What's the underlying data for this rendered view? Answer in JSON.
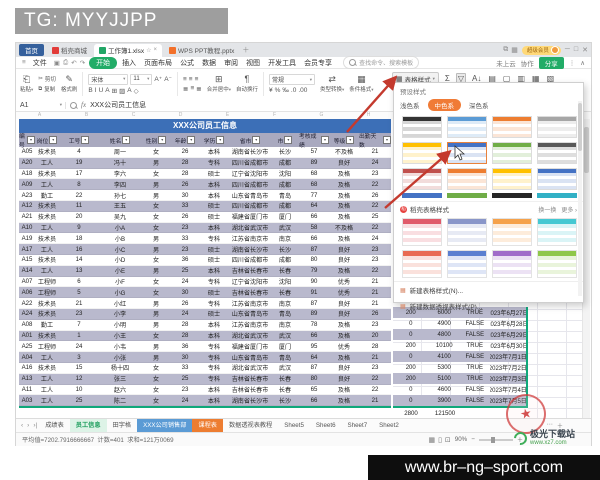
{
  "overlay": {
    "tg_banner": "TG: MYYJJPP",
    "bottom_bar_url": "www.br–ng–sport.com",
    "stamp_star": "★",
    "watermark": {
      "site_name": "极光下载站",
      "site_url": "www.xz7.com"
    }
  },
  "titlebar": {
    "home_button": "首页",
    "doc_tabs": [
      {
        "label": "稻壳商城",
        "icon": "docer",
        "active": false
      },
      {
        "label": "工作簿1.xlsx",
        "icon": "sheet",
        "active": true
      },
      {
        "label": "WPS PPT教程.pptx",
        "icon": "ppt",
        "active": false
      }
    ],
    "new_tab": "＋",
    "member_pill": "超级会员",
    "layout_icons": [
      "⧉",
      "▦"
    ],
    "window_controls": [
      "─",
      "□",
      "✕"
    ]
  },
  "menubar": {
    "file": "文件",
    "quick_icons": [
      "▣",
      "⎙",
      "↶",
      "↷"
    ],
    "items": [
      "开始",
      "插入",
      "页面布局",
      "公式",
      "数据",
      "审阅",
      "视图",
      "开发工具",
      "会员专享"
    ],
    "active_item": "开始",
    "search_placeholder": "查找命令、搜索模板",
    "right": {
      "cloud": "未上云",
      "collab": "协作",
      "share": "分享",
      "more": "⋮",
      "collapse": "∧"
    }
  },
  "toolbar": {
    "paste": "粘贴",
    "cut": "剪切",
    "copy": "复制",
    "painter": "格式刷",
    "font_name": "宋体",
    "font_size": "11",
    "font_row": [
      "B",
      "I",
      "U",
      "A",
      "⊞",
      "▨",
      "A",
      "◇"
    ],
    "align_row1": [
      "≡",
      "≡",
      "≡"
    ],
    "align_row2": [
      "≣",
      "≡",
      "≣"
    ],
    "merge": "合并居中",
    "wrap": "自动换行",
    "num_format": "常规",
    "num_row": [
      "¥",
      "%",
      "‰",
      ".0",
      ".00"
    ],
    "type_convert": "类型转换",
    "cond_format": "条件格式",
    "table_style": "表格样式",
    "right_icons": [
      "Σ",
      "▽",
      "A↓",
      "▤",
      "▢",
      "▥",
      "▦",
      "▧"
    ]
  },
  "formula_bar": {
    "cell_ref": "A1",
    "fx": "fx",
    "value": "XXX公司员工信息"
  },
  "col_letters": [
    "A",
    "B",
    "C",
    "D",
    "E",
    "F",
    "G",
    "H",
    "I",
    "J",
    "K",
    "L"
  ],
  "employee_table": {
    "title": "XXX公司员工信息",
    "headers": [
      "编号",
      "岗位",
      "工号",
      "姓名",
      "性别",
      "年龄",
      "学历",
      "省市",
      "市",
      "考核成绩",
      "等级",
      "出勤天数"
    ],
    "rows": [
      [
        "A05",
        "技术员",
        "4",
        "周一",
        "女",
        "26",
        "本科",
        "湖南省长沙市",
        "长沙",
        "57",
        "不及格",
        "21"
      ],
      [
        "A20",
        "工人",
        "19",
        "冯十",
        "男",
        "28",
        "专科",
        "四川省成都市",
        "成都",
        "89",
        "良好",
        "24"
      ],
      [
        "A18",
        "技术员",
        "17",
        "李六",
        "女",
        "28",
        "硕士",
        "辽宁省沈阳市",
        "沈阳",
        "68",
        "及格",
        "23"
      ],
      [
        "A09",
        "工人",
        "8",
        "李四",
        "男",
        "26",
        "本科",
        "四川省成都市",
        "成都",
        "68",
        "及格",
        "22"
      ],
      [
        "A23",
        "勤工",
        "22",
        "孙七",
        "男",
        "30",
        "本科",
        "山东省青岛市",
        "青岛",
        "77",
        "及格",
        "26"
      ],
      [
        "A12",
        "技术员",
        "11",
        "王五",
        "女",
        "33",
        "硕士",
        "四川省成都市",
        "成都",
        "64",
        "及格",
        "22"
      ],
      [
        "A21",
        "技术员",
        "20",
        "吴九",
        "女",
        "26",
        "硕士",
        "福建省厦门市",
        "厦门",
        "66",
        "及格",
        "25"
      ],
      [
        "A10",
        "工人",
        "9",
        "小A",
        "女",
        "23",
        "本科",
        "湖北省武汉市",
        "武汉",
        "58",
        "不及格",
        "22"
      ],
      [
        "A19",
        "技术员",
        "18",
        "小B",
        "男",
        "33",
        "专科",
        "江苏省南京市",
        "南京",
        "66",
        "及格",
        "24"
      ],
      [
        "A17",
        "工人",
        "16",
        "小C",
        "男",
        "23",
        "硕士",
        "湖南省长沙市",
        "长沙",
        "87",
        "良好",
        "23"
      ],
      [
        "A15",
        "技术员",
        "14",
        "小D",
        "女",
        "36",
        "硕士",
        "四川省成都市",
        "成都",
        "80",
        "良好",
        "23"
      ],
      [
        "A14",
        "工人",
        "13",
        "小E",
        "男",
        "25",
        "本科",
        "吉林省长春市",
        "长春",
        "79",
        "及格",
        "22"
      ],
      [
        "A07",
        "工程师",
        "6",
        "小F",
        "女",
        "24",
        "专科",
        "辽宁省沈阳市",
        "沈阳",
        "90",
        "优秀",
        "21"
      ],
      [
        "A06",
        "工程师",
        "5",
        "小G",
        "女",
        "30",
        "硕士",
        "吉林省长春市",
        "长春",
        "91",
        "优秀",
        "21"
      ],
      [
        "A22",
        "技术员",
        "21",
        "小红",
        "男",
        "26",
        "专科",
        "江苏省南京市",
        "南京",
        "87",
        "良好",
        "21"
      ],
      [
        "A24",
        "技术员",
        "23",
        "小李",
        "男",
        "24",
        "硕士",
        "山东省青岛市",
        "青岛",
        "89",
        "良好",
        "26"
      ],
      [
        "A08",
        "勤工",
        "7",
        "小明",
        "男",
        "28",
        "本科",
        "江苏省南京市",
        "南京",
        "78",
        "及格",
        "23"
      ],
      [
        "A01",
        "技术员",
        "1",
        "小王",
        "女",
        "28",
        "本科",
        "湖北省武汉市",
        "武汉",
        "66",
        "及格",
        "20"
      ],
      [
        "A25",
        "工程师",
        "24",
        "小韦",
        "男",
        "36",
        "专科",
        "福建省厦门市",
        "厦门",
        "95",
        "优秀",
        "28"
      ],
      [
        "A04",
        "工人",
        "3",
        "小张",
        "男",
        "30",
        "专科",
        "山东省青岛市",
        "青岛",
        "64",
        "及格",
        "21"
      ],
      [
        "A16",
        "技术员",
        "15",
        "杨十四",
        "女",
        "33",
        "专科",
        "湖北省武汉市",
        "武汉",
        "87",
        "良好",
        "23"
      ],
      [
        "A13",
        "工人",
        "12",
        "张三",
        "女",
        "25",
        "专科",
        "吉林省长春市",
        "长春",
        "80",
        "良好",
        "22"
      ],
      [
        "A11",
        "工人",
        "10",
        "赵六",
        "女",
        "23",
        "本科",
        "吉林省长春市",
        "长春",
        "65",
        "及格",
        "22"
      ],
      [
        "A03",
        "工人",
        "25",
        "陈二",
        "女",
        "24",
        "本科",
        "湖南省长沙市",
        "长沙",
        "66",
        "及格",
        "21"
      ]
    ]
  },
  "side_table": {
    "rows": [
      [
        "200",
        "6000",
        "TRUE",
        "2023年6月27日"
      ],
      [
        "0",
        "4900",
        "FALSE",
        "2023年6月28日"
      ],
      [
        "0",
        "4800",
        "FALSE",
        "2023年6月29日"
      ],
      [
        "200",
        "10100",
        "TRUE",
        "2023年6月30日"
      ],
      [
        "0",
        "4100",
        "FALSE",
        "2023年7月1日"
      ],
      [
        "200",
        "5300",
        "TRUE",
        "2023年7月2日"
      ],
      [
        "200",
        "5100",
        "TRUE",
        "2023年7月3日"
      ],
      [
        "0",
        "4600",
        "FALSE",
        "2023年7月4日"
      ],
      [
        "0",
        "3900",
        "FALSE",
        "2023年7月5日"
      ]
    ],
    "totals": [
      "2800",
      "121500"
    ]
  },
  "style_panel": {
    "title": "预设样式",
    "tabs": [
      "浅色系",
      "中色系",
      "深色系"
    ],
    "active_tab": "中色系",
    "preset_rows": [
      [
        "#333333",
        "#5b9bd5",
        "#ed7d31",
        "#a6a6a6"
      ],
      [
        "#ffc000",
        "#4472c4",
        "#70ad47",
        "#595959"
      ],
      [
        "#c0504d",
        "#ed7d31",
        "#ffc000",
        "#4472c4"
      ]
    ],
    "selected_preset": {
      "row": 1,
      "col": 1
    },
    "strip_row": [
      "#4472c4",
      "#70ad47",
      "#262626",
      "#31b0c5"
    ],
    "docer_header": {
      "badge": "稻",
      "title": "稻壳表格样式",
      "refresh": "换一换",
      "more": "更多 ›"
    },
    "docer_rows": [
      [
        "#e05a6a",
        "#8996c9",
        "#f5a24b",
        "#45c8d2"
      ],
      [
        "#e86a52",
        "#5a7fd0",
        "#a06cc9",
        "#8fc74a"
      ]
    ],
    "menu_items": [
      "新建表格样式(N)...",
      "新建数据透视表样式(P)..."
    ]
  },
  "sheet_tabs": {
    "nav": [
      "‹",
      "›",
      "›|"
    ],
    "items": [
      {
        "label": "成绩表",
        "style": "plain"
      },
      {
        "label": "员工信息",
        "style": "active"
      },
      {
        "label": "田字格",
        "style": "plain"
      },
      {
        "label": "XXX公司销售部",
        "style": "blue"
      },
      {
        "label": "课程表",
        "style": "orange"
      },
      {
        "label": "数据透视表教程",
        "style": "plain"
      },
      {
        "label": "Sheet5",
        "style": "plain"
      },
      {
        "label": "Sheet6",
        "style": "plain"
      },
      {
        "label": "Sheet7",
        "style": "plain"
      },
      {
        "label": "Sheet2",
        "style": "plain"
      }
    ],
    "more": "⋯",
    "add": "＋"
  },
  "status_bar": {
    "summary": "平均值=7202.7916666667  计数=401  求和=121万0069",
    "view_icons": [
      "▦",
      "▯",
      "⊡"
    ],
    "zoom": "90%",
    "zoom_minus": "−",
    "zoom_plus": "＋"
  }
}
